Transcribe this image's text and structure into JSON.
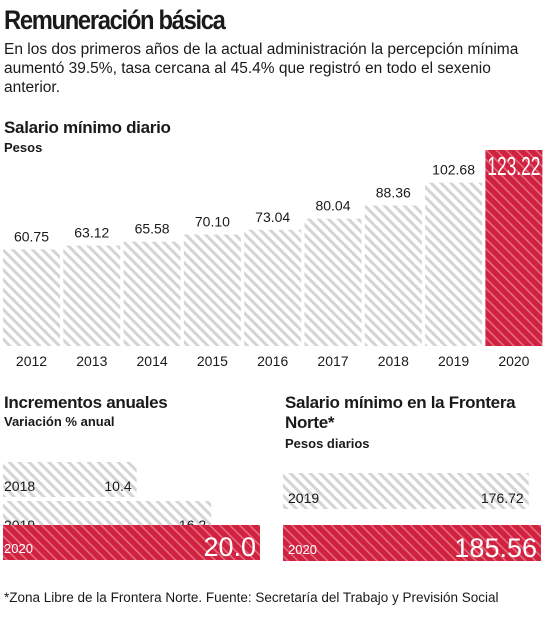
{
  "header": {
    "title": "Remuneración básica",
    "subtitle": "En los dos primeros años de la actual administración la percepción mínima aumentó 39.5%, tasa cercana al 45.4% que registró en todo el sexenio anterior."
  },
  "colors": {
    "accent": "#d0213f",
    "hatch": "#d4d4d4",
    "text": "#1a1a1a"
  },
  "chart_data": [
    {
      "type": "bar",
      "title": "Salario mínimo diario",
      "ylabel": "Pesos",
      "categories": [
        "2012",
        "2013",
        "2014",
        "2015",
        "2016",
        "2017",
        "2018",
        "2019",
        "2020"
      ],
      "values": [
        60.75,
        63.12,
        65.58,
        70.1,
        73.04,
        80.04,
        88.36,
        102.68,
        123.22
      ],
      "labels": [
        "60.75",
        "63.12",
        "65.58",
        "70.10",
        "73.04",
        "80.04",
        "88.36",
        "102.68",
        "123.22"
      ],
      "highlight": "2020",
      "ylim": [
        0,
        123.22
      ]
    },
    {
      "type": "bar",
      "orientation": "horizontal",
      "title": "Incrementos anuales",
      "xlabel": "Variación % anual",
      "categories": [
        "2018",
        "2019",
        "2020"
      ],
      "values": [
        10.4,
        16.2,
        20.0
      ],
      "labels": [
        "10.4",
        "16.2",
        "20.0"
      ],
      "highlight": "2020"
    },
    {
      "type": "bar",
      "orientation": "horizontal",
      "title": "Salario mínimo en la Frontera Norte*",
      "xlabel": "Pesos diarios",
      "categories": [
        "2019",
        "2020"
      ],
      "values": [
        176.72,
        185.56
      ],
      "labels": [
        "176.72",
        "185.56"
      ],
      "highlight": "2020"
    }
  ],
  "footnote": "*Zona Libre de la Frontera Norte. Fuente: Secretaría del Trabajo y Previsión Social"
}
